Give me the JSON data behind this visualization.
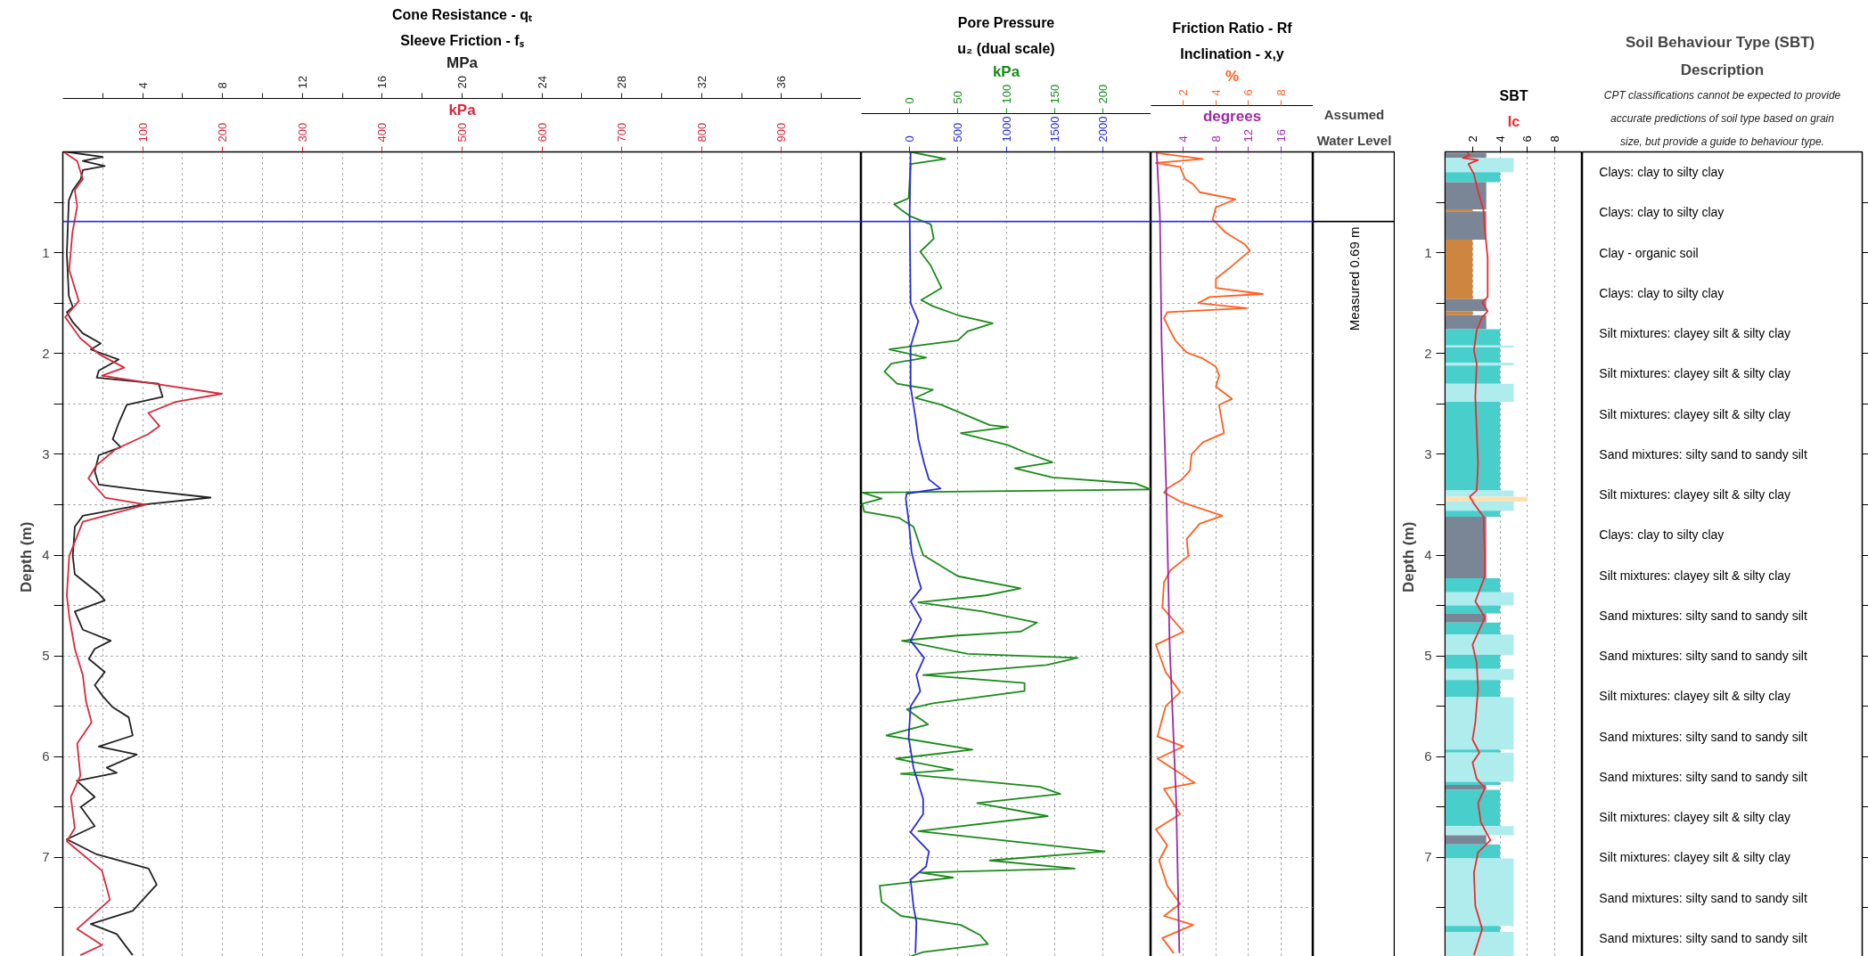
{
  "chart_data": [
    {
      "type": "line",
      "orientation": "horizontal",
      "title": "Cone Resistance - qₜ",
      "subtitle": "Sleeve Friction - fₛ",
      "ylabel": "Depth  (m)",
      "xlabel": "MPa",
      "x2label": "kPa",
      "xlim": [
        0,
        40
      ],
      "xticks": [
        {
          "value": 2,
          "label": null
        },
        4,
        {
          "value": 6,
          "label": null
        },
        8,
        {
          "value": 10,
          "label": null
        },
        12,
        {
          "value": 14,
          "label": null
        },
        16,
        {
          "value": 18,
          "label": null
        },
        20,
        {
          "value": 22,
          "label": null
        },
        24,
        {
          "value": 26,
          "label": null
        },
        28,
        {
          "value": 30,
          "label": null
        },
        32,
        {
          "value": 34,
          "label": null
        },
        36,
        {
          "value": 38,
          "label": null
        }
      ],
      "x2lim": [
        0,
        1000
      ],
      "x2ticks": [
        100,
        200,
        300,
        400,
        500,
        600,
        700,
        800,
        900
      ],
      "ylim": [
        8,
        0
      ],
      "yticks": [
        {
          "value": 0.5,
          "label": null
        },
        1,
        {
          "value": 1.5,
          "label": null
        },
        2,
        {
          "value": 2.5,
          "label": null
        },
        3,
        {
          "value": 3.5,
          "label": null
        },
        4,
        {
          "value": 4.5,
          "label": null
        },
        5,
        {
          "value": 5.5,
          "label": null
        },
        6,
        {
          "value": 6.5,
          "label": null
        },
        7,
        {
          "value": 7.5,
          "label": null
        }
      ],
      "grid": true,
      "ref_lines": [
        {
          "axis": "y",
          "value": 0.69,
          "color": "#3333ee"
        }
      ],
      "series": [
        {
          "color": "#222222",
          "x": [
            0.0,
            0.05,
            0.09,
            0.14,
            0.18,
            0.27,
            0.38,
            0.48,
            1.01,
            1.43,
            1.54,
            1.59,
            1.69,
            1.8,
            1.9,
            1.96,
            2.06,
            2.17,
            2.24,
            2.3,
            2.43,
            2.51,
            2.69,
            2.85,
            2.93,
            3.01,
            3.17,
            3.3,
            3.35,
            3.43,
            3.5,
            3.61,
            3.72,
            4.01,
            4.19,
            4.38,
            4.45,
            4.56,
            4.74,
            4.85,
            4.93,
            5.03,
            5.16,
            5.29,
            5.4,
            5.51,
            5.61,
            5.79,
            5.9,
            5.98,
            6.11,
            6.16,
            6.24,
            6.4,
            6.5,
            6.69,
            6.82,
            6.97,
            7.11,
            7.27,
            7.53,
            7.66,
            7.76,
            7.97
          ],
          "values": [
            0.2,
            2.0,
            1.0,
            2.1,
            1.0,
            0.9,
            0.5,
            0.3,
            0.2,
            0.3,
            0.5,
            0.2,
            0.5,
            1.0,
            1.9,
            1.4,
            2.8,
            1.8,
            1.7,
            4.8,
            5.0,
            3.2,
            2.8,
            2.5,
            2.9,
            1.8,
            1.6,
            1.8,
            3.7,
            7.4,
            4.0,
            1.0,
            0.6,
            0.5,
            0.6,
            1.8,
            2.1,
            0.6,
            1.0,
            2.4,
            1.6,
            1.3,
            2.1,
            1.6,
            2.0,
            2.5,
            3.3,
            3.5,
            1.8,
            3.7,
            2.2,
            2.7,
            0.7,
            1.6,
            0.9,
            1.6,
            0.2,
            1.7,
            4.3,
            4.7,
            3.5,
            1.4,
            2.7,
            3.5
          ]
        },
        {
          "color": "#d42a3c",
          "axis": "x2",
          "x": [
            0.0,
            0.09,
            0.27,
            0.38,
            0.54,
            0.8,
            1.17,
            1.48,
            1.64,
            1.85,
            2.01,
            2.14,
            2.22,
            2.3,
            2.4,
            2.48,
            2.59,
            2.72,
            2.8,
            2.95,
            3.11,
            3.24,
            3.43,
            3.5,
            3.67,
            4.01,
            4.4,
            4.61,
            4.93,
            5.19,
            5.45,
            5.66,
            5.87,
            6.19,
            6.4,
            6.71,
            6.84,
            7.13,
            7.42,
            7.71,
            7.87,
            7.97
          ],
          "values": [
            1,
            18,
            25,
            15,
            18,
            12,
            8,
            20,
            3,
            22,
            46,
            77,
            49,
            114,
            199,
            141,
            107,
            121,
            107,
            66,
            42,
            32,
            53,
            104,
            25,
            8,
            5,
            8,
            15,
            25,
            29,
            36,
            18,
            22,
            10,
            15,
            5,
            49,
            59,
            18,
            49,
            22
          ]
        }
      ]
    },
    {
      "type": "line",
      "orientation": "horizontal",
      "title": "Pore Pressure",
      "subtitle": "u₂ (dual scale)",
      "xlabel": "kPa",
      "xlim": [
        -50,
        250
      ],
      "xticks": [
        0,
        50,
        100,
        150,
        200
      ],
      "x2lim": [
        -500,
        2500
      ],
      "x2ticks": [
        0,
        500,
        1000,
        1500,
        2000
      ],
      "ylim": [
        8,
        0
      ],
      "yticks": [
        {
          "value": 0.5,
          "label": null
        },
        1,
        {
          "value": 1.5,
          "label": null
        },
        2,
        {
          "value": 2.5,
          "label": null
        },
        3,
        {
          "value": 3.5,
          "label": null
        },
        4,
        {
          "value": 4.5,
          "label": null
        },
        5,
        {
          "value": 5.5,
          "label": null
        },
        6,
        {
          "value": 6.5,
          "label": null
        },
        7,
        {
          "value": 7.5,
          "label": null
        }
      ],
      "grid": true,
      "tick_labels": "x",
      "ref_lines": [
        {
          "axis": "y",
          "value": 0.69,
          "color": "#3333ee"
        }
      ],
      "series": [
        {
          "color": "#1a8a1a",
          "x": [
            0.0,
            0.07,
            0.12,
            0.46,
            0.52,
            0.58,
            0.64,
            0.72,
            0.86,
            0.99,
            1.13,
            1.35,
            1.47,
            1.53,
            1.62,
            1.7,
            1.78,
            1.87,
            1.93,
            1.96,
            2.04,
            2.1,
            2.18,
            2.3,
            2.36,
            2.44,
            2.51,
            2.71,
            2.73,
            2.79,
            2.91,
            2.99,
            3.08,
            3.14,
            3.23,
            3.29,
            3.35,
            3.38,
            3.44,
            3.49,
            3.57,
            3.63,
            3.72,
            4.0,
            4.21,
            4.33,
            4.4,
            4.47,
            4.56,
            4.67,
            4.76,
            4.8,
            4.85,
            4.98,
            5.02,
            5.09,
            5.19,
            5.27,
            5.35,
            5.47,
            5.53,
            5.68,
            5.79,
            5.93,
            6.02,
            6.13,
            6.17,
            6.3,
            6.37,
            6.46,
            6.59,
            6.74,
            6.94,
            7.03,
            7.11,
            7.15,
            7.2,
            7.28,
            7.44,
            7.58,
            7.67,
            7.77,
            7.86,
            7.94,
            7.98
          ],
          "values": [
            1,
            37,
            1,
            -1,
            -16,
            -8,
            1,
            22,
            25,
            11,
            22,
            33,
            12,
            24,
            50,
            86,
            60,
            50,
            1,
            -21,
            17,
            -19,
            -26,
            -13,
            24,
            6,
            33,
            83,
            102,
            53,
            102,
            122,
            148,
            109,
            148,
            234,
            250,
            -49,
            -29,
            -49,
            -47,
            -11,
            4,
            14,
            50,
            115,
            79,
            9,
            76,
            132,
            115,
            47,
            -8,
            60,
            174,
            142,
            14,
            119,
            119,
            24,
            -3,
            19,
            -24,
            65,
            -14,
            45,
            -9,
            135,
            156,
            70,
            143,
            9,
            202,
            83,
            171,
            11,
            45,
            -31,
            -29,
            -9,
            53,
            73,
            81,
            14,
            1
          ]
        },
        {
          "color": "#2b2bd6",
          "axis": "x2",
          "x": [
            0.0,
            0.64,
            1.5,
            1.68,
            1.93,
            2.33,
            2.63,
            2.85,
            3.09,
            3.25,
            3.34,
            3.39,
            3.44,
            3.66,
            3.97,
            4.24,
            4.33,
            4.46,
            4.64,
            4.85,
            5.02,
            5.19,
            5.35,
            5.5,
            5.81,
            6.11,
            6.42,
            6.57,
            6.75,
            6.94,
            7.09,
            7.22,
            7.49,
            7.64,
            7.95
          ],
          "values": [
            10,
            0,
            10,
            90,
            10,
            10,
            60,
            90,
            150,
            200,
            320,
            -30,
            -40,
            -10,
            20,
            90,
            120,
            10,
            120,
            10,
            150,
            70,
            110,
            10,
            -10,
            40,
            140,
            140,
            10,
            200,
            170,
            10,
            40,
            70,
            60
          ]
        }
      ]
    },
    {
      "type": "line",
      "orientation": "horizontal",
      "title": "Friction Ratio - Rf",
      "subtitle": "Inclination - x,y",
      "xlabel": "%",
      "x2label": "degrees",
      "xlim": [
        0,
        10
      ],
      "xticks": [
        2,
        4,
        6,
        8
      ],
      "x2lim": [
        0,
        20
      ],
      "x2ticks": [
        4,
        8,
        12,
        16
      ],
      "ylim": [
        8,
        0
      ],
      "yticks": [
        {
          "value": 0.5,
          "label": null
        },
        1,
        {
          "value": 1.5,
          "label": null
        },
        2,
        {
          "value": 2.5,
          "label": null
        },
        3,
        {
          "value": 3.5,
          "label": null
        },
        4,
        {
          "value": 4.5,
          "label": null
        },
        5,
        {
          "value": 5.5,
          "label": null
        },
        6,
        {
          "value": 6.5,
          "label": null
        },
        7,
        {
          "value": 7.5,
          "label": null
        }
      ],
      "grid": true,
      "tick_labels": "x",
      "ref_lines": [
        {
          "axis": "y",
          "value": 0.69,
          "color": "#3333ee"
        }
      ],
      "series": [
        {
          "color": "#ff5f1f",
          "x": [
            0.01,
            0.07,
            0.11,
            0.15,
            0.27,
            0.32,
            0.4,
            0.47,
            0.55,
            0.67,
            0.8,
            0.92,
            0.98,
            1.13,
            1.26,
            1.35,
            1.41,
            1.44,
            1.5,
            1.55,
            1.59,
            1.65,
            1.75,
            1.87,
            1.99,
            2.05,
            2.13,
            2.22,
            2.33,
            2.45,
            2.51,
            2.7,
            2.79,
            2.88,
            3.0,
            3.16,
            3.25,
            3.34,
            3.38,
            3.47,
            3.61,
            3.69,
            3.84,
            4.01,
            4.15,
            4.27,
            4.52,
            4.76,
            4.89,
            5.16,
            5.36,
            5.5,
            5.8,
            5.9,
            6.02,
            6.26,
            6.32,
            6.57,
            6.72,
            6.88,
            7.03,
            7.28,
            7.46,
            7.58,
            7.67,
            7.8,
            7.95
          ],
          "values": [
            0.3,
            3.2,
            0.3,
            1.8,
            2.1,
            2.6,
            3.0,
            5.2,
            4.0,
            3.8,
            4.6,
            5.8,
            6.1,
            5.0,
            4.0,
            4.0,
            6.9,
            3.6,
            2.9,
            5.9,
            1.0,
            0.8,
            1.1,
            1.5,
            2.2,
            3.2,
            4.0,
            4.2,
            4.0,
            5.0,
            4.2,
            4.4,
            4.5,
            3.2,
            2.5,
            2.4,
            1.9,
            1.0,
            0.8,
            1.8,
            4.4,
            3.0,
            2.2,
            2.3,
            1.2,
            0.8,
            0.7,
            2.0,
            0.3,
            0.9,
            1.8,
            0.9,
            0.4,
            2.0,
            0.4,
            2.7,
            0.8,
            1.8,
            0.3,
            1.0,
            0.5,
            1.0,
            1.8,
            0.8,
            2.6,
            0.7,
            1.4
          ]
        },
        {
          "color": "#9b2aa6",
          "axis": "x2",
          "x": [
            0.0,
            0.64,
            1.87,
            3.4,
            4.89,
            6.42,
            7.95
          ],
          "values": [
            0.7,
            1.1,
            1.3,
            1.9,
            2.3,
            3.1,
            3.5
          ]
        }
      ]
    },
    {
      "type": "histogram",
      "orientation": "horizontal",
      "title": "SBT",
      "subtitle": "Ic",
      "ylabel": "Depth  (m)",
      "xlim": [
        0,
        10
      ],
      "xticks": [
        2,
        4,
        6,
        8
      ],
      "ylim": [
        8,
        0
      ],
      "yticks": [
        {
          "value": 0.5,
          "label": null
        },
        1,
        {
          "value": 1.5,
          "label": null
        },
        2,
        {
          "value": 2.5,
          "label": null
        },
        3,
        {
          "value": 3.5,
          "label": null
        },
        4,
        {
          "value": 4.5,
          "label": null
        },
        5,
        {
          "value": 5.5,
          "label": null
        },
        6,
        {
          "value": 6.5,
          "label": null
        },
        7,
        {
          "value": 7.5,
          "label": null
        }
      ],
      "grid": "x",
      "ref_lines": [
        {
          "axis": "y",
          "value": 0.69,
          "label": "Measured 0.69 m",
          "color": "#000000"
        }
      ],
      "bins": [
        0.01,
        0.06,
        0.2,
        0.3,
        0.57,
        0.59,
        0.87,
        1.46,
        1.58,
        1.62,
        1.76,
        1.92,
        1.94,
        2.09,
        2.12,
        2.3,
        2.48,
        3.36,
        3.42,
        3.47,
        3.56,
        3.62,
        4.23,
        4.37,
        4.5,
        4.58,
        4.67,
        4.79,
        4.99,
        5.13,
        5.24,
        5.41,
        5.93,
        5.96,
        6.25,
        6.28,
        6.33,
        6.69,
        6.78,
        6.87,
        7.01,
        7.68,
        7.74,
        8.0
      ],
      "values": [
        3,
        5,
        4,
        3,
        2,
        3,
        2,
        3,
        2,
        3,
        4,
        5,
        4,
        5,
        4,
        5,
        4,
        5,
        6,
        5,
        4,
        3,
        4,
        5,
        4,
        3,
        4,
        5,
        4,
        5,
        4,
        5,
        4,
        5,
        4,
        3,
        4,
        5,
        3,
        4,
        5,
        4,
        5
      ],
      "colors": [
        "#7a8696",
        "#afeced",
        "#48cfcb",
        "#7a8696",
        "#cd853f",
        "#7a8696",
        "#cd853f",
        "#7a8696",
        "#cd853f",
        "#7a8696",
        "#48cfcb",
        "#afeced",
        "#48cfcb",
        "#afeced",
        "#48cfcb",
        "#afeced",
        "#48cfcb",
        "#afeced",
        "#ffe0b2",
        "#afeced",
        "#48cfcb",
        "#7a8696",
        "#48cfcb",
        "#afeced",
        "#48cfcb",
        "#7a8696",
        "#48cfcb",
        "#afeced",
        "#48cfcb",
        "#afeced",
        "#48cfcb",
        "#afeced",
        "#48cfcb",
        "#afeced",
        "#48cfcb",
        "#7a8696",
        "#48cfcb",
        "#afeced",
        "#7a8696",
        "#48cfcb",
        "#afeced",
        "#48cfcb",
        "#afeced"
      ],
      "series": [
        {
          "type": "line",
          "color": "#f0282d",
          "x": [
            0.01,
            0.03,
            0.06,
            0.08,
            0.12,
            0.22,
            0.39,
            0.58,
            0.78,
            1.05,
            1.44,
            1.49,
            1.58,
            1.64,
            1.77,
            1.97,
            2.1,
            2.43,
            2.76,
            3.09,
            3.36,
            3.42,
            3.49,
            3.62,
            4.01,
            4.21,
            4.46,
            4.62,
            4.8,
            4.89,
            5.07,
            5.33,
            5.66,
            5.83,
            5.96,
            6.06,
            6.22,
            6.31,
            6.46,
            6.65,
            6.83,
            6.95,
            7.15,
            7.48,
            7.71,
            7.97
          ],
          "values": [
            1.6,
            1.8,
            1.3,
            2.4,
            1.7,
            2.1,
            2.4,
            2.8,
            2.9,
            3.1,
            3.1,
            2.7,
            3.1,
            2.7,
            2.3,
            2.1,
            2.3,
            2.2,
            2.3,
            2.4,
            2.3,
            1.8,
            2.1,
            2.8,
            2.9,
            2.9,
            2.2,
            2.9,
            2.3,
            2.0,
            2.3,
            2.4,
            2.2,
            2.0,
            2.5,
            2.0,
            2.3,
            2.9,
            2.4,
            2.6,
            3.3,
            2.4,
            2.1,
            2.2,
            2.7,
            2.1
          ]
        }
      ],
      "annotations": [
        "Assumed",
        "Water Level",
        "Soil Behaviour Type  (SBT)",
        "Description",
        "CPT classifications cannot be expected to provide",
        "accurate predictions of soil type based on grain",
        "size, but provide a guide to behaviour type.",
        "Clays: clay to silty clay",
        "Clays: clay to silty clay",
        "Clay - organic soil",
        "Clays: clay to silty clay",
        "Silt mixtures: clayey silt & silty clay",
        "Silt mixtures: clayey silt & silty clay",
        "Silt mixtures: clayey silt & silty clay",
        "Sand mixtures: silty sand to sandy silt",
        "Silt mixtures: clayey silt & silty clay",
        "Clays: clay to silty clay",
        "Silt mixtures: clayey silt & silty clay",
        "Sand mixtures: silty sand to sandy silt",
        "Sand mixtures: silty sand to sandy silt",
        "Silt mixtures: clayey silt & silty clay",
        "Sand mixtures: silty sand to sandy silt",
        "Sand mixtures: silty sand to sandy silt",
        "Silt mixtures: clayey silt & silty clay",
        "Silt mixtures: clayey silt & silty clay",
        "Sand mixtures: silty sand to sandy silt",
        "Sand mixtures: silty sand to sandy silt"
      ]
    }
  ]
}
